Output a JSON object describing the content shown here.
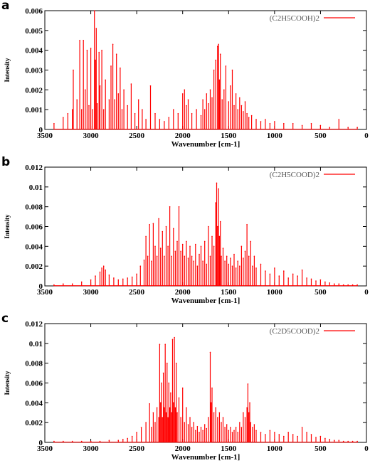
{
  "colors": {
    "series": "#ff0000",
    "frame": "#000000",
    "legend_text": "#555555"
  },
  "chart_data": [
    {
      "type": "line",
      "panel_label": "a",
      "xlabel": "Wavenumber [cm-1]",
      "ylabel": "Intensity",
      "xlim": [
        3500,
        0
      ],
      "ylim": [
        0,
        0.006
      ],
      "x_reversed": true,
      "grid": false,
      "legend_position": "top-right",
      "x_ticks": [
        "3500",
        "3000",
        "2500",
        "2000",
        "1500",
        "1000",
        "500",
        "0"
      ],
      "y_ticks": [
        "0",
        "0.001",
        "0.002",
        "0.003",
        "0.004",
        "0.005",
        "0.006"
      ],
      "series": [
        {
          "name": "(C2H5COOH)2",
          "x": [
            3400,
            3300,
            3250,
            3200,
            3190,
            3150,
            3120,
            3100,
            3080,
            3060,
            3040,
            3020,
            3000,
            2980,
            2960,
            2950,
            2940,
            2930,
            2910,
            2900,
            2880,
            2860,
            2840,
            2800,
            2780,
            2760,
            2740,
            2720,
            2700,
            2680,
            2660,
            2640,
            2600,
            2560,
            2520,
            2480,
            2440,
            2400,
            2350,
            2300,
            2250,
            2200,
            2150,
            2100,
            2050,
            2000,
            1980,
            1960,
            1940,
            1900,
            1850,
            1800,
            1780,
            1760,
            1740,
            1720,
            1700,
            1680,
            1660,
            1640,
            1620,
            1610,
            1600,
            1590,
            1570,
            1550,
            1530,
            1500,
            1480,
            1460,
            1440,
            1420,
            1400,
            1380,
            1360,
            1340,
            1320,
            1300,
            1280,
            1250,
            1200,
            1150,
            1100,
            1050,
            1000,
            900,
            800,
            700,
            600,
            500,
            400,
            300,
            200,
            100
          ],
          "y": [
            0.0003,
            0.0006,
            0.0008,
            0.001,
            0.003,
            0.0015,
            0.0045,
            0.001,
            0.0045,
            0.002,
            0.004,
            0.0012,
            0.0041,
            0.001,
            0.006,
            0.0035,
            0.0051,
            0.0013,
            0.0039,
            0.0022,
            0.004,
            0.001,
            0.0025,
            0.0015,
            0.0032,
            0.0043,
            0.0015,
            0.0038,
            0.0018,
            0.0031,
            0.001,
            0.002,
            0.0012,
            0.0023,
            0.0008,
            0.0015,
            0.001,
            0.0005,
            0.0022,
            0.0008,
            0.0005,
            0.0004,
            0.0006,
            0.001,
            0.0008,
            0.0018,
            0.002,
            0.0012,
            0.0015,
            0.0008,
            0.001,
            0.0007,
            0.0015,
            0.001,
            0.0018,
            0.0013,
            0.002,
            0.0016,
            0.003,
            0.0035,
            0.0042,
            0.0043,
            0.0025,
            0.0038,
            0.0015,
            0.002,
            0.0032,
            0.0014,
            0.0022,
            0.003,
            0.0012,
            0.0018,
            0.001,
            0.0016,
            0.0012,
            0.0009,
            0.0014,
            0.0008,
            0.0006,
            0.0007,
            0.0005,
            0.0004,
            0.0005,
            0.0003,
            0.0004,
            0.0003,
            0.0003,
            0.0002,
            0.0003,
            0.0002,
            0.0001,
            0.0005,
            0.0001,
            0.0001
          ]
        }
      ]
    },
    {
      "type": "line",
      "panel_label": "b",
      "xlabel": "Wavenumber [cm-1]",
      "ylabel": "Intensity",
      "xlim": [
        3500,
        0
      ],
      "ylim": [
        0,
        0.012
      ],
      "x_reversed": true,
      "grid": false,
      "legend_position": "top-right",
      "x_ticks": [
        "3500",
        "3000",
        "2500",
        "2000",
        "1500",
        "1000",
        "500",
        "0"
      ],
      "y_ticks": [
        "0",
        "0.002",
        "0.004",
        "0.006",
        "0.008",
        "0.01",
        "0.012"
      ],
      "series": [
        {
          "name": "(C2H5COOD)2",
          "x": [
            3400,
            3300,
            3200,
            3100,
            3000,
            2950,
            2900,
            2880,
            2860,
            2840,
            2800,
            2750,
            2700,
            2650,
            2600,
            2550,
            2500,
            2460,
            2420,
            2400,
            2380,
            2360,
            2340,
            2320,
            2300,
            2280,
            2260,
            2240,
            2220,
            2200,
            2180,
            2160,
            2140,
            2120,
            2100,
            2080,
            2060,
            2040,
            2020,
            2000,
            1980,
            1960,
            1940,
            1920,
            1900,
            1880,
            1860,
            1840,
            1820,
            1800,
            1780,
            1760,
            1740,
            1720,
            1700,
            1680,
            1660,
            1640,
            1630,
            1620,
            1610,
            1600,
            1590,
            1580,
            1560,
            1540,
            1520,
            1500,
            1480,
            1460,
            1440,
            1420,
            1400,
            1380,
            1360,
            1340,
            1320,
            1300,
            1280,
            1260,
            1240,
            1220,
            1200,
            1150,
            1100,
            1050,
            1000,
            950,
            900,
            850,
            800,
            750,
            700,
            650,
            600,
            550,
            500,
            450,
            400,
            350,
            300,
            250,
            200,
            150,
            100
          ],
          "y": [
            0.0001,
            0.0002,
            0.0002,
            0.0004,
            0.0006,
            0.001,
            0.0014,
            0.0018,
            0.002,
            0.0016,
            0.0011,
            0.0008,
            0.0006,
            0.0007,
            0.0008,
            0.0009,
            0.0012,
            0.002,
            0.0026,
            0.005,
            0.003,
            0.0062,
            0.0025,
            0.0063,
            0.004,
            0.003,
            0.0068,
            0.0038,
            0.0055,
            0.003,
            0.006,
            0.004,
            0.008,
            0.003,
            0.0058,
            0.0035,
            0.0045,
            0.008,
            0.0035,
            0.0042,
            0.003,
            0.0045,
            0.0028,
            0.004,
            0.003,
            0.0025,
            0.0042,
            0.002,
            0.0032,
            0.004,
            0.0025,
            0.0045,
            0.0022,
            0.006,
            0.003,
            0.005,
            0.004,
            0.0084,
            0.0104,
            0.006,
            0.0098,
            0.005,
            0.0065,
            0.003,
            0.0038,
            0.0025,
            0.003,
            0.0022,
            0.0028,
            0.002,
            0.0032,
            0.0018,
            0.0025,
            0.002,
            0.004,
            0.0028,
            0.0035,
            0.0062,
            0.003,
            0.0045,
            0.002,
            0.003,
            0.0018,
            0.0022,
            0.0015,
            0.0012,
            0.0018,
            0.001,
            0.0015,
            0.0008,
            0.0012,
            0.001,
            0.0016,
            0.0008,
            0.0007,
            0.0005,
            0.0006,
            0.0004,
            0.0003,
            0.0002,
            0.0002,
            0.0001,
            0.0001,
            0.0001,
            0.0001
          ]
        }
      ]
    },
    {
      "type": "line",
      "panel_label": "c",
      "xlabel": "Wavenumber [cm-1]",
      "ylabel": "Intensity",
      "xlim": [
        3500,
        0
      ],
      "ylim": [
        0,
        0.012
      ],
      "x_reversed": true,
      "grid": false,
      "legend_position": "top-right",
      "x_ticks": [
        "3500",
        "3000",
        "2500",
        "2000",
        "1500",
        "1000",
        "500",
        "0"
      ],
      "y_ticks": [
        "0",
        "0.002",
        "0.004",
        "0.006",
        "0.008",
        "0.01",
        "0.012"
      ],
      "series": [
        {
          "name": "(C2D5COOD)2",
          "x": [
            3400,
            3300,
            3200,
            3100,
            3000,
            2900,
            2800,
            2700,
            2650,
            2600,
            2550,
            2500,
            2450,
            2400,
            2360,
            2340,
            2320,
            2300,
            2280,
            2260,
            2250,
            2240,
            2230,
            2220,
            2210,
            2200,
            2190,
            2180,
            2170,
            2160,
            2150,
            2140,
            2130,
            2120,
            2110,
            2100,
            2090,
            2080,
            2070,
            2060,
            2040,
            2020,
            2000,
            1980,
            1960,
            1940,
            1920,
            1900,
            1880,
            1860,
            1840,
            1820,
            1800,
            1780,
            1760,
            1740,
            1720,
            1700,
            1690,
            1680,
            1660,
            1640,
            1620,
            1600,
            1580,
            1560,
            1540,
            1520,
            1500,
            1480,
            1460,
            1440,
            1420,
            1400,
            1380,
            1360,
            1340,
            1320,
            1300,
            1290,
            1280,
            1270,
            1260,
            1240,
            1220,
            1200,
            1150,
            1100,
            1050,
            1000,
            950,
            900,
            850,
            800,
            750,
            700,
            650,
            600,
            550,
            500,
            450,
            400,
            350,
            300,
            250,
            200,
            150,
            100
          ],
          "y": [
            0.0001,
            0.0001,
            0.0001,
            0.0001,
            0.0001,
            0.0001,
            0.0002,
            0.0002,
            0.0003,
            0.0004,
            0.0006,
            0.001,
            0.0015,
            0.002,
            0.0039,
            0.0015,
            0.003,
            0.002,
            0.0035,
            0.0025,
            0.0099,
            0.004,
            0.006,
            0.0025,
            0.007,
            0.0035,
            0.0099,
            0.003,
            0.008,
            0.0025,
            0.006,
            0.0035,
            0.005,
            0.003,
            0.0104,
            0.004,
            0.0106,
            0.0035,
            0.008,
            0.003,
            0.0045,
            0.0025,
            0.0055,
            0.002,
            0.0035,
            0.0018,
            0.0025,
            0.0015,
            0.002,
            0.0012,
            0.0016,
            0.001,
            0.0015,
            0.0012,
            0.0018,
            0.0014,
            0.0025,
            0.0091,
            0.004,
            0.0055,
            0.003,
            0.0035,
            0.0025,
            0.003,
            0.002,
            0.0025,
            0.0015,
            0.0018,
            0.0012,
            0.0015,
            0.001,
            0.0012,
            0.0015,
            0.001,
            0.002,
            0.0015,
            0.003,
            0.0025,
            0.0035,
            0.0059,
            0.003,
            0.004,
            0.002,
            0.0015,
            0.0018,
            0.0012,
            0.001,
            0.0008,
            0.0012,
            0.001,
            0.0008,
            0.0006,
            0.001,
            0.0008,
            0.0006,
            0.0015,
            0.001,
            0.0008,
            0.0005,
            0.0006,
            0.0004,
            0.0003,
            0.0002,
            0.0002,
            0.0001,
            0.0001,
            0.0001,
            0.0001
          ]
        }
      ]
    }
  ]
}
